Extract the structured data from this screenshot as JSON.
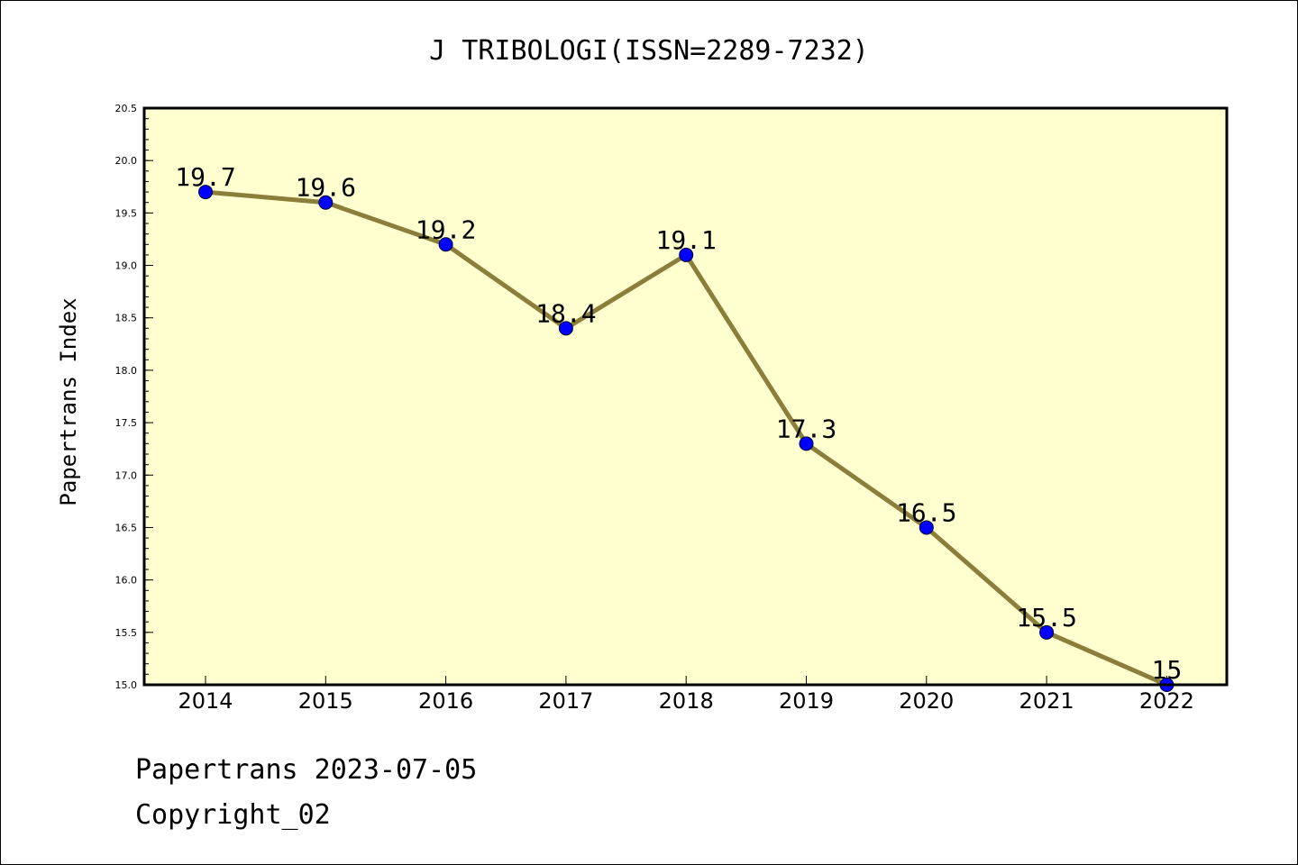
{
  "chart_data": {
    "type": "line",
    "title": "J TRIBOLOGI(ISSN=2289-7232)",
    "ylabel": "Papertrans Index",
    "xlabel": "",
    "categories": [
      "2014",
      "2015",
      "2016",
      "2017",
      "2018",
      "2019",
      "2020",
      "2021",
      "2022"
    ],
    "values": [
      19.7,
      19.6,
      19.2,
      18.4,
      19.1,
      17.3,
      16.5,
      15.5,
      15
    ],
    "data_labels": [
      "19.7",
      "19.6",
      "19.2",
      "18.4",
      "19.1",
      "17.3",
      "16.5",
      "15.5",
      "15"
    ],
    "ylim": [
      15.0,
      20.5
    ],
    "yticks": [
      "15.0",
      "15.5",
      "16.0",
      "16.5",
      "17.0",
      "17.5",
      "18.0",
      "18.5",
      "19.0",
      "19.5",
      "20.0",
      "20.5"
    ],
    "grid": false,
    "colors": {
      "plot_background": "#ffffd0",
      "line": "#8b7d3a",
      "marker": "#0000ff"
    }
  },
  "footer": {
    "date_line": "Papertrans 2023-07-05",
    "copyright": "Copyright_02"
  }
}
